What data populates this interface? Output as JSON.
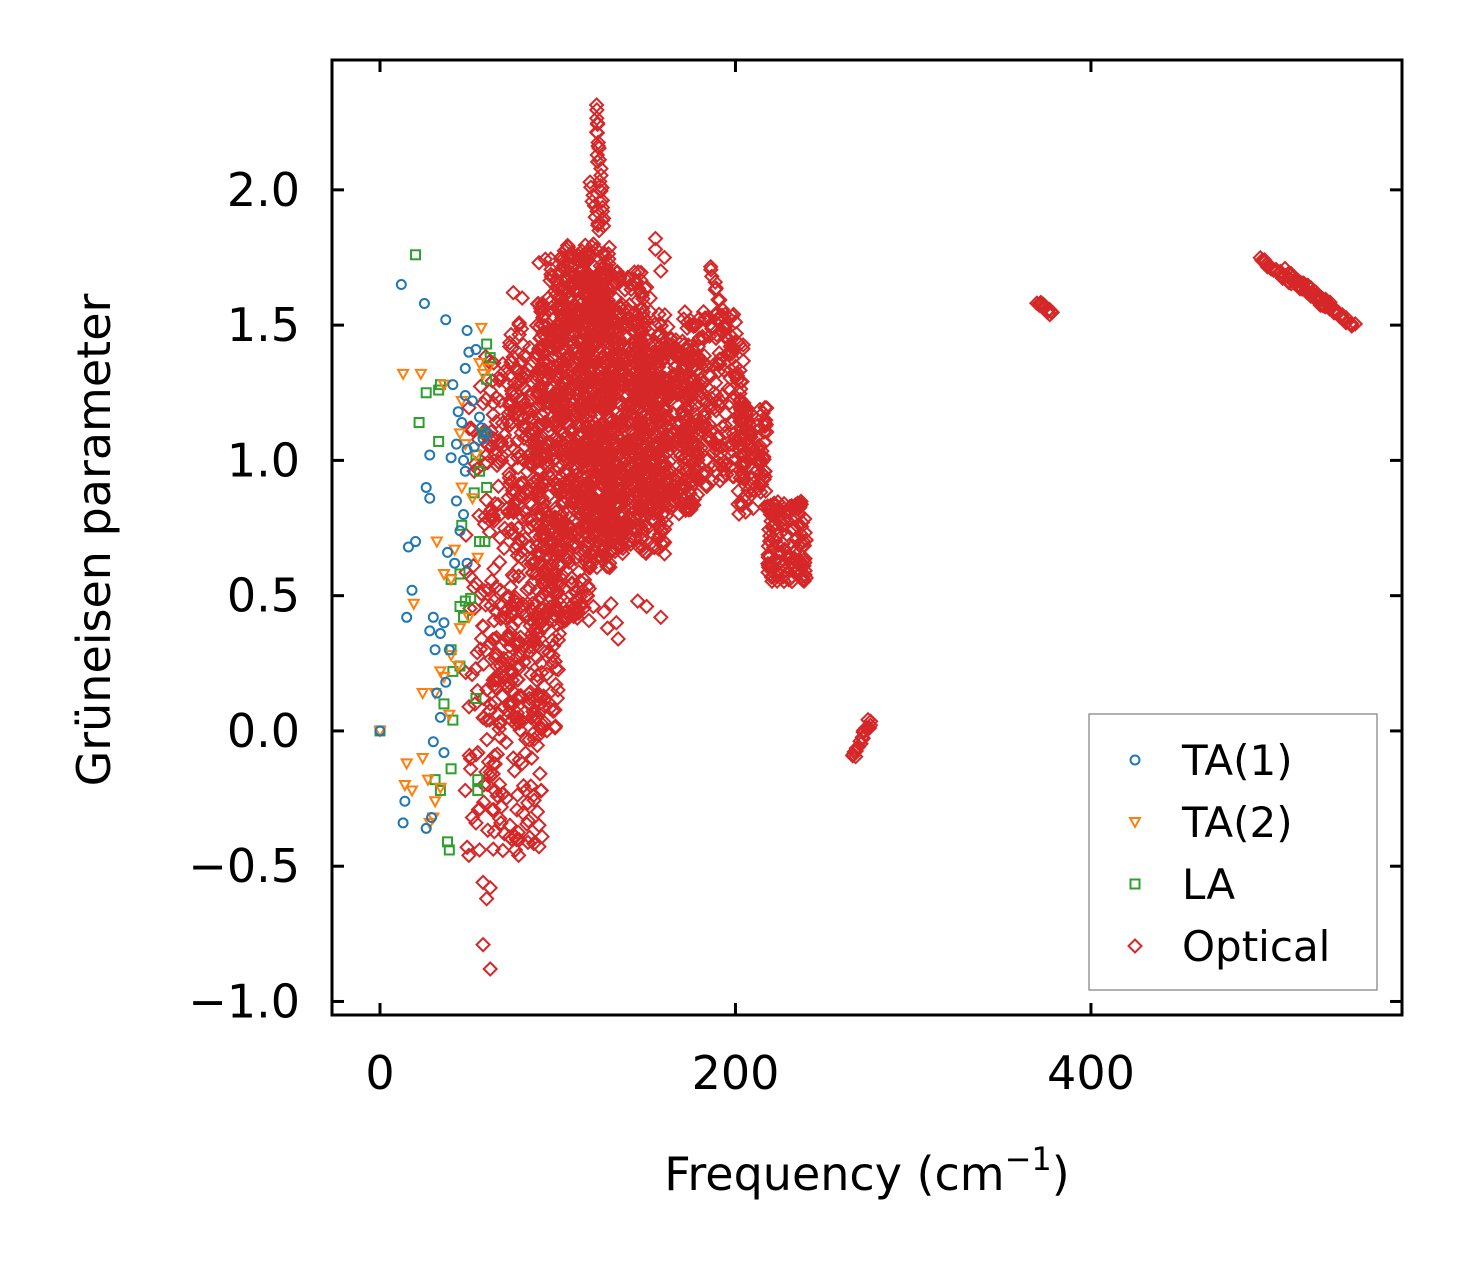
{
  "chart_data": {
    "type": "scatter",
    "title": "",
    "xlabel": "Frequency (cm",
    "xlabel_sup": "−1",
    "xlabel_close": ")",
    "ylabel": "Grüneisen parameter",
    "xlim": [
      -27,
      575
    ],
    "ylim": [
      -1.05,
      2.48
    ],
    "xticks": [
      0,
      200,
      400
    ],
    "xtick_labels": [
      "0",
      "200",
      "400"
    ],
    "yticks": [
      -1.0,
      -0.5,
      0.0,
      0.5,
      1.0,
      1.5,
      2.0
    ],
    "ytick_labels": [
      "−1.0",
      "−0.5",
      "0.0",
      "0.5",
      "1.0",
      "1.5",
      "2.0"
    ],
    "grid": false,
    "legend_position": "bottom-right",
    "series": [
      {
        "name": "TA(1)",
        "marker": "circle",
        "color": "#1f77b4",
        "points": [
          [
            0,
            0.0
          ],
          [
            12,
            1.65
          ],
          [
            25,
            1.58
          ],
          [
            37,
            1.52
          ],
          [
            49,
            1.48
          ],
          [
            50,
            1.4
          ],
          [
            54,
            1.41
          ],
          [
            48,
            1.34
          ],
          [
            41,
            1.28
          ],
          [
            48,
            1.24
          ],
          [
            52,
            1.22
          ],
          [
            44,
            1.18
          ],
          [
            46,
            1.14
          ],
          [
            56,
            1.16
          ],
          [
            57,
            1.12
          ],
          [
            58,
            1.08
          ],
          [
            60,
            1.1
          ],
          [
            43,
            1.06
          ],
          [
            49,
            1.04
          ],
          [
            53,
            1.05
          ],
          [
            28,
            1.02
          ],
          [
            40,
            1.01
          ],
          [
            47,
            1.0
          ],
          [
            48,
            0.96
          ],
          [
            26,
            0.9
          ],
          [
            28,
            0.86
          ],
          [
            43,
            0.85
          ],
          [
            47,
            0.8
          ],
          [
            45,
            0.74
          ],
          [
            38,
            0.66
          ],
          [
            16,
            0.68
          ],
          [
            20,
            0.7
          ],
          [
            42,
            0.62
          ],
          [
            49,
            0.62
          ],
          [
            18,
            0.52
          ],
          [
            30,
            0.42
          ],
          [
            15,
            0.42
          ],
          [
            36,
            0.4
          ],
          [
            28,
            0.37
          ],
          [
            34,
            0.36
          ],
          [
            31,
            0.3
          ],
          [
            39,
            0.3
          ],
          [
            37,
            0.18
          ],
          [
            32,
            0.14
          ],
          [
            34,
            0.05
          ],
          [
            36,
            -0.08
          ],
          [
            30,
            -0.04
          ],
          [
            14,
            -0.26
          ],
          [
            29,
            -0.32
          ],
          [
            26,
            -0.36
          ],
          [
            13,
            -0.34
          ]
        ]
      },
      {
        "name": "TA(2)",
        "marker": "triangle-down",
        "color": "#ff7f0e",
        "points": [
          [
            0,
            0.0
          ],
          [
            13,
            1.32
          ],
          [
            23,
            1.32
          ],
          [
            57,
            1.49
          ],
          [
            56,
            1.36
          ],
          [
            58,
            1.32
          ],
          [
            61,
            1.34
          ],
          [
            36,
            1.28
          ],
          [
            46,
            1.22
          ],
          [
            45,
            1.1
          ],
          [
            48,
            1.06
          ],
          [
            54,
            1.02
          ],
          [
            46,
            0.9
          ],
          [
            52,
            0.86
          ],
          [
            32,
            0.7
          ],
          [
            42,
            0.67
          ],
          [
            55,
            0.64
          ],
          [
            36,
            0.58
          ],
          [
            40,
            0.56
          ],
          [
            19,
            0.47
          ],
          [
            50,
            0.42
          ],
          [
            45,
            0.38
          ],
          [
            40,
            0.28
          ],
          [
            44,
            0.24
          ],
          [
            34,
            0.22
          ],
          [
            36,
            0.2
          ],
          [
            31,
            0.14
          ],
          [
            24,
            0.14
          ],
          [
            39,
            0.06
          ],
          [
            15,
            -0.12
          ],
          [
            24,
            -0.1
          ],
          [
            14,
            -0.2
          ],
          [
            18,
            -0.22
          ],
          [
            27,
            -0.18
          ],
          [
            31,
            -0.26
          ],
          [
            34,
            -0.21
          ],
          [
            30,
            -0.32
          ],
          [
            28,
            -0.34
          ]
        ]
      },
      {
        "name": "LA",
        "marker": "square",
        "color": "#2ca02c",
        "points": [
          [
            0,
            0.0
          ],
          [
            20,
            1.76
          ],
          [
            60,
            1.43
          ],
          [
            62,
            1.38
          ],
          [
            60,
            1.3
          ],
          [
            34,
            1.28
          ],
          [
            33,
            1.26
          ],
          [
            26,
            1.25
          ],
          [
            22,
            1.14
          ],
          [
            58,
            1.1
          ],
          [
            33,
            1.07
          ],
          [
            54,
            1.02
          ],
          [
            56,
            0.96
          ],
          [
            53,
            0.88
          ],
          [
            60,
            0.9
          ],
          [
            46,
            0.76
          ],
          [
            56,
            0.7
          ],
          [
            59,
            0.7
          ],
          [
            45,
            0.58
          ],
          [
            40,
            0.56
          ],
          [
            48,
            0.48
          ],
          [
            45,
            0.46
          ],
          [
            51,
            0.49
          ],
          [
            47,
            0.42
          ],
          [
            40,
            0.3
          ],
          [
            45,
            0.24
          ],
          [
            41,
            0.22
          ],
          [
            54,
            0.12
          ],
          [
            36,
            0.1
          ],
          [
            41,
            0.04
          ],
          [
            55,
            -0.18
          ],
          [
            40,
            -0.14
          ],
          [
            31,
            -0.18
          ],
          [
            34,
            -0.22
          ],
          [
            55,
            -0.22
          ],
          [
            38,
            -0.41
          ],
          [
            39,
            -0.44
          ]
        ]
      },
      {
        "name": "Optical",
        "marker": "diamond",
        "color": "#d62728",
        "blobs": [
          {
            "x": [
              48,
              72
            ],
            "y": [
              -0.3,
              1.3
            ],
            "n": 90
          },
          {
            "x": [
              58,
              92
            ],
            "y": [
              -0.45,
              1.4
            ],
            "n": 240
          },
          {
            "x": [
              72,
              102
            ],
            "y": [
              0.0,
              1.55
            ],
            "n": 320
          },
          {
            "x": [
              88,
              118
            ],
            "y": [
              0.4,
              1.75
            ],
            "n": 420
          },
          {
            "x": [
              100,
              130
            ],
            "y": [
              0.6,
              1.8
            ],
            "n": 420
          },
          {
            "x": [
              115,
              150
            ],
            "y": [
              0.7,
              1.7
            ],
            "n": 420
          },
          {
            "x": [
              125,
              162
            ],
            "y": [
              0.65,
              1.55
            ],
            "n": 380
          },
          {
            "x": [
              145,
              180
            ],
            "y": [
              0.8,
              1.45
            ],
            "n": 320
          },
          {
            "x": [
              170,
              205
            ],
            "y": [
              0.9,
              1.55
            ],
            "n": 240
          },
          {
            "x": [
              200,
              218
            ],
            "y": [
              0.8,
              1.2
            ],
            "n": 90
          },
          {
            "x": [
              218,
              240
            ],
            "y": [
              0.55,
              0.85
            ],
            "n": 140
          }
        ],
        "lines": [
          {
            "from": [
              121,
              2.31
            ],
            "to": [
              126,
              1.86
            ],
            "n": 26
          },
          {
            "from": [
              118,
              2.02
            ],
            "to": [
              124,
              1.84
            ],
            "n": 10
          },
          {
            "from": [
              186,
              1.72
            ],
            "to": [
              212,
              1.0
            ],
            "n": 38
          },
          {
            "from": [
              266,
              -0.1
            ],
            "to": [
              276,
              0.04
            ],
            "n": 22
          },
          {
            "from": [
              369,
              1.59
            ],
            "to": [
              379,
              1.54
            ],
            "n": 14
          },
          {
            "from": [
              495,
              1.74
            ],
            "to": [
              548,
              1.5
            ],
            "n": 60
          },
          {
            "from": [
              510,
              1.7
            ],
            "to": [
              540,
              1.55
            ],
            "n": 30
          }
        ],
        "points": [
          [
            75,
            1.62
          ],
          [
            80,
            1.6
          ],
          [
            64,
            1.36
          ],
          [
            68,
            1.3
          ],
          [
            155,
            1.82
          ],
          [
            155,
            1.78
          ],
          [
            160,
            1.75
          ],
          [
            158,
            1.7
          ],
          [
            150,
            1.64
          ],
          [
            152,
            1.6
          ],
          [
            90,
            0.34
          ],
          [
            95,
            0.29
          ],
          [
            99,
            0.23
          ],
          [
            100,
            0.48
          ],
          [
            105,
            0.44
          ],
          [
            113,
            0.46
          ],
          [
            120,
            0.46
          ],
          [
            130,
            0.47
          ],
          [
            133,
            0.4
          ],
          [
            134,
            0.34
          ],
          [
            128,
            0.38
          ],
          [
            126,
            0.44
          ],
          [
            145,
            0.48
          ],
          [
            150,
            0.46
          ],
          [
            158,
            0.42
          ],
          [
            58,
            -0.56
          ],
          [
            62,
            -0.58
          ],
          [
            60,
            -0.62
          ],
          [
            62,
            -0.88
          ],
          [
            58,
            -0.79
          ],
          [
            78,
            -0.46
          ],
          [
            70,
            -0.38
          ],
          [
            74,
            -0.4
          ],
          [
            68,
            -0.34
          ],
          [
            82,
            -0.22
          ],
          [
            80,
            -0.12
          ],
          [
            75,
            -0.1
          ],
          [
            64,
            -0.12
          ],
          [
            66,
            -0.24
          ],
          [
            86,
            -0.01
          ],
          [
            87,
            0.04
          ],
          [
            50,
            -0.46
          ],
          [
            49,
            -0.43
          ],
          [
            52,
            -0.32
          ],
          [
            54,
            -0.34
          ],
          [
            56,
            -0.44
          ],
          [
            48,
            -0.22
          ],
          [
            51,
            -0.14
          ],
          [
            55,
            -0.08
          ],
          [
            60,
            0.04
          ],
          [
            62,
            0.1
          ],
          [
            65,
            0.16
          ],
          [
            68,
            0.24
          ],
          [
            70,
            0.2
          ],
          [
            84,
            0.12
          ],
          [
            98,
            0.08
          ]
        ]
      }
    ]
  }
}
